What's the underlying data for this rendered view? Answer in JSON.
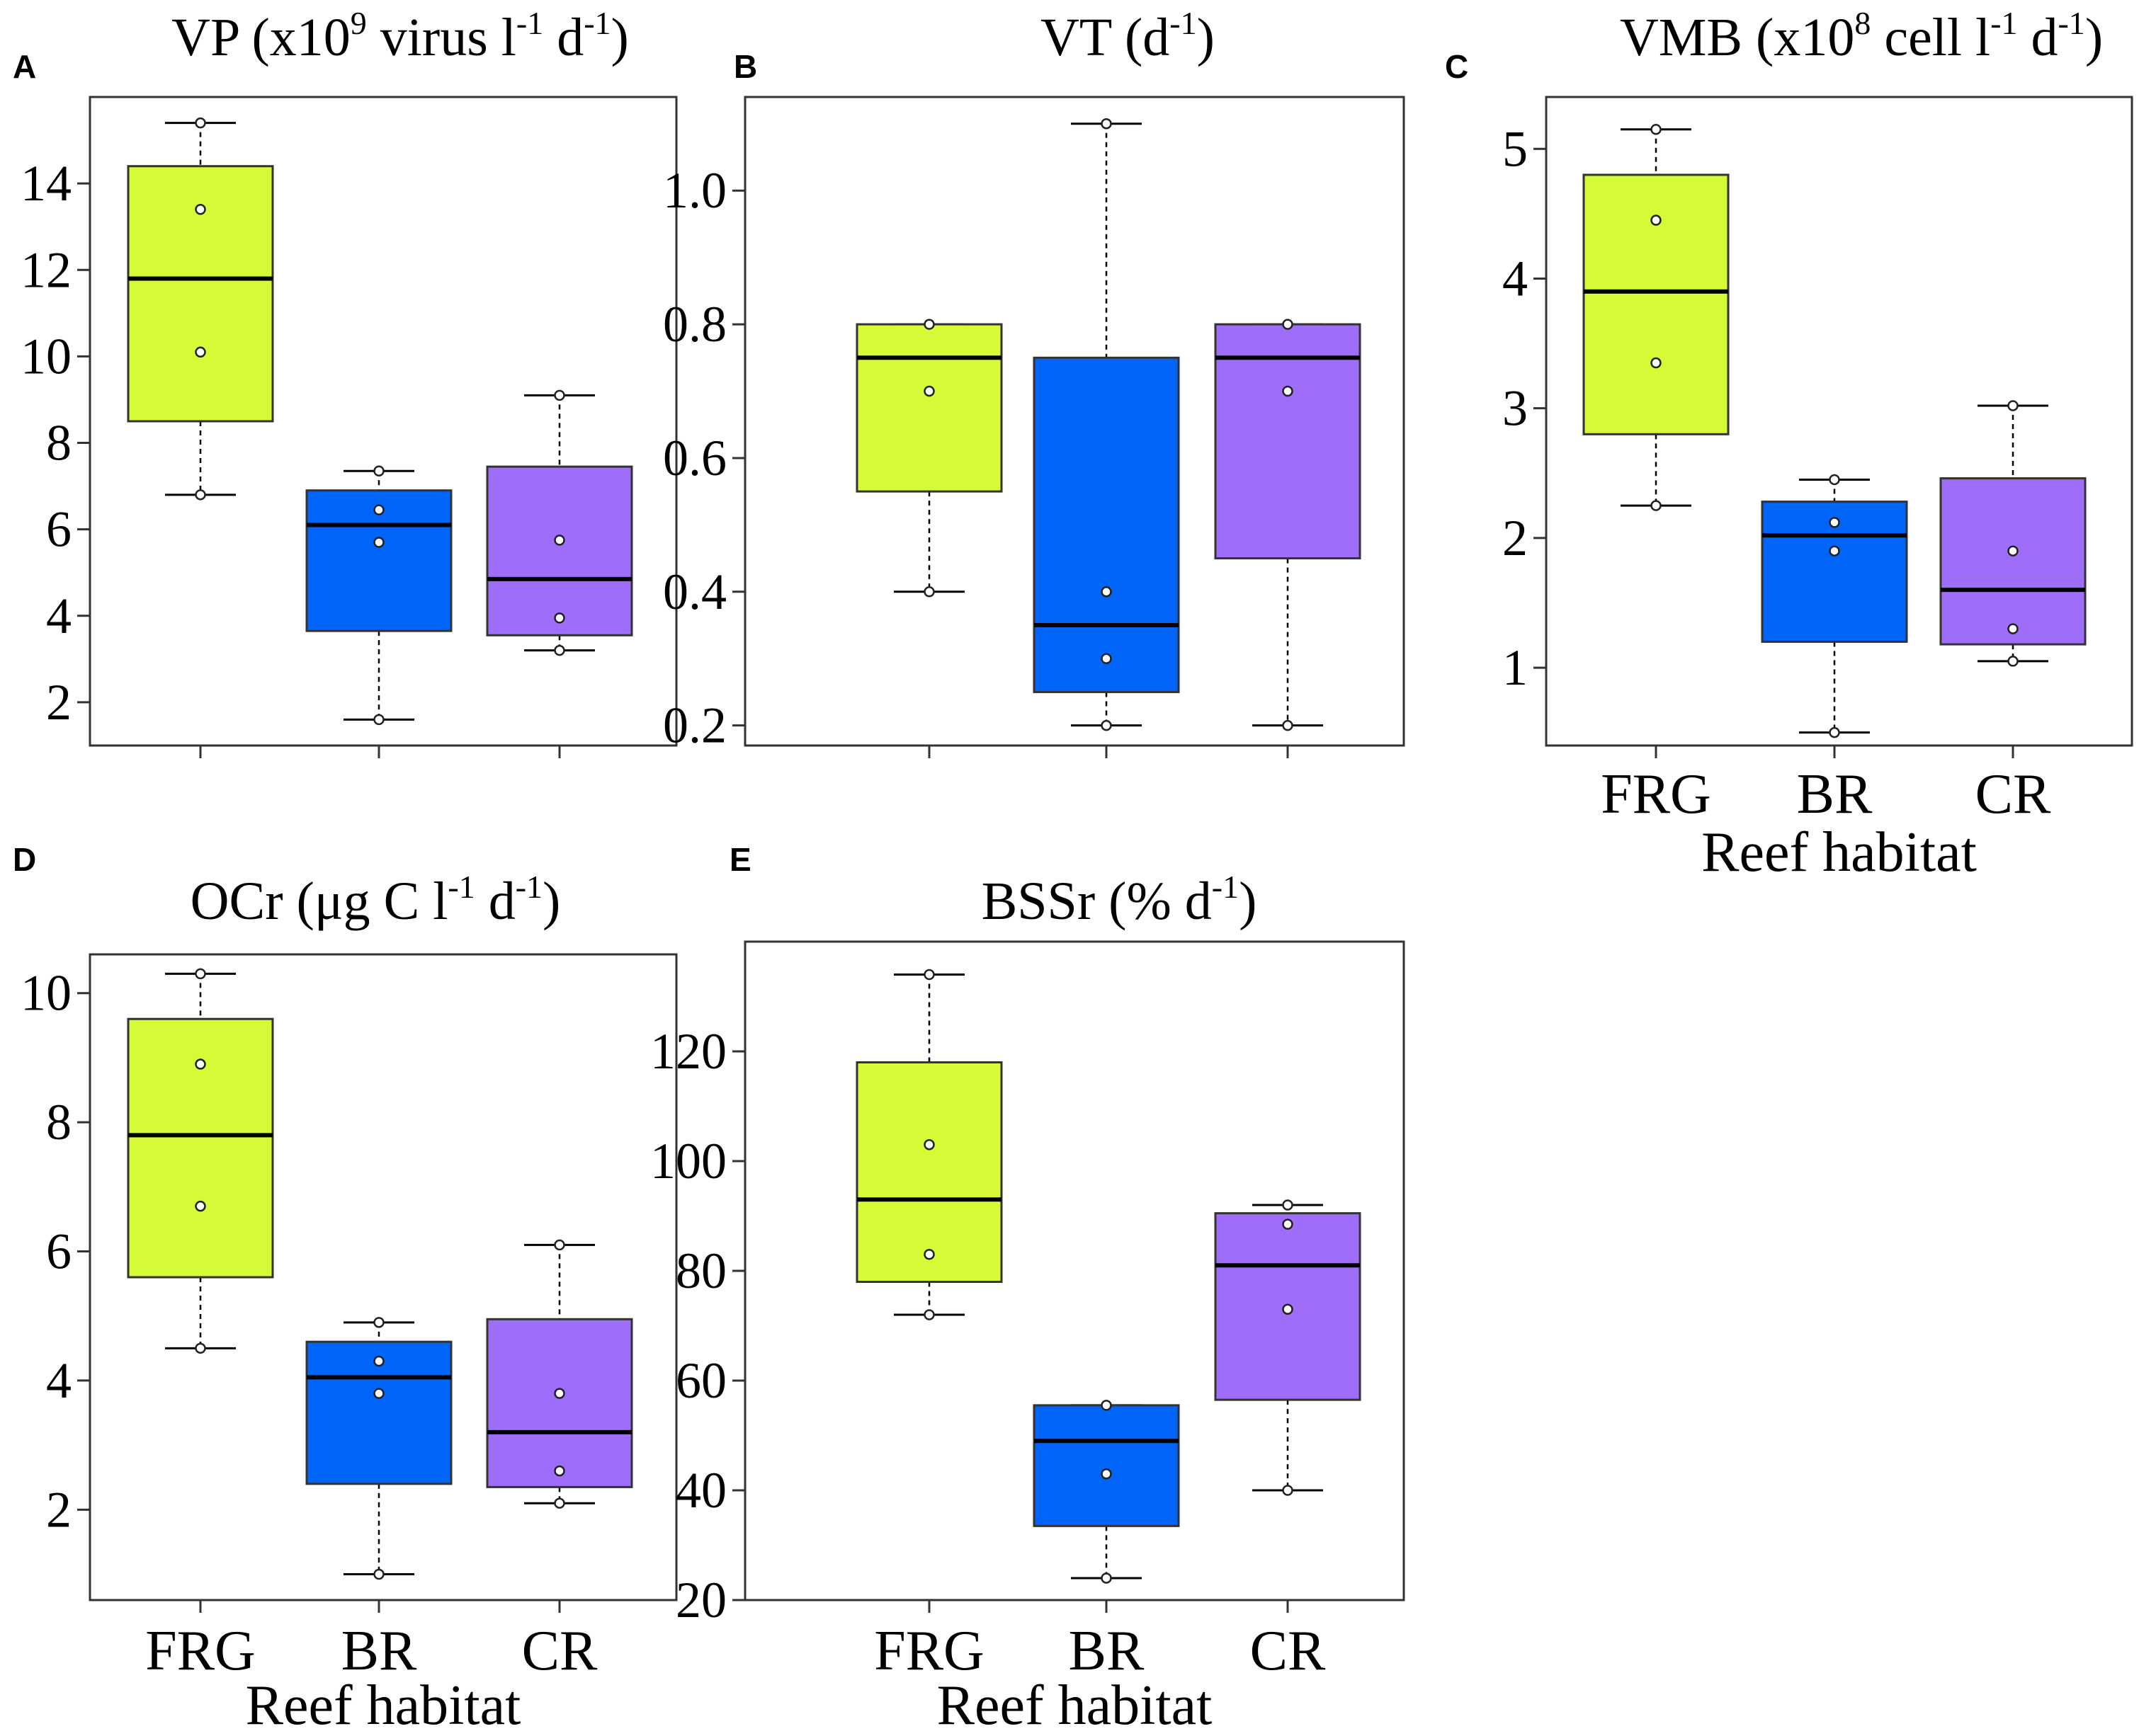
{
  "figure": {
    "category_axis_label": "Reef habitat",
    "colors": {
      "FRG": "#d4fb36",
      "BR": "#0065f8",
      "CR": "#9e6efa"
    }
  },
  "chart_data": [
    {
      "panel": "A",
      "type": "box",
      "title": "VP (x10",
      "title_sup": "9",
      "title_rest": " virus l",
      "title_sup2": "-1",
      "title_rest2": " d",
      "title_sup3": "-1",
      "title_end": ")",
      "categories": [
        "FRG",
        "BR",
        "CR"
      ],
      "show_category_labels": false,
      "ylim": [
        1,
        16
      ],
      "yticks": [
        2,
        4,
        6,
        8,
        10,
        12,
        14
      ],
      "boxes": [
        {
          "category": "FRG",
          "min": 6.8,
          "q1": 8.5,
          "median": 11.8,
          "q3": 14.4,
          "max": 15.4,
          "points": [
            6.8,
            10.1,
            13.4,
            15.4
          ]
        },
        {
          "category": "BR",
          "min": 1.6,
          "q1": 3.65,
          "median": 6.1,
          "q3": 6.9,
          "max": 7.35,
          "points": [
            1.6,
            5.7,
            6.45,
            7.35
          ]
        },
        {
          "category": "CR",
          "min": 3.2,
          "q1": 3.55,
          "median": 4.85,
          "q3": 7.45,
          "max": 9.1,
          "points": [
            3.2,
            3.95,
            5.75,
            9.1
          ]
        }
      ]
    },
    {
      "panel": "B",
      "type": "box",
      "title": "VT (d",
      "title_sup": "-1",
      "title_rest": ")",
      "categories": [
        "FRG",
        "BR",
        "CR"
      ],
      "show_category_labels": false,
      "ylim": [
        0.17,
        1.14
      ],
      "yticks": [
        0.2,
        0.4,
        0.6,
        0.8,
        1.0
      ],
      "ytick_labels": [
        "0.2",
        "0.4",
        "0.6",
        "0.8",
        "1.0"
      ],
      "boxes": [
        {
          "category": "FRG",
          "min": 0.4,
          "q1": 0.55,
          "median": 0.75,
          "q3": 0.8,
          "max": 0.8,
          "points": [
            0.4,
            0.7,
            0.8
          ]
        },
        {
          "category": "BR",
          "min": 0.2,
          "q1": 0.25,
          "median": 0.35,
          "q3": 0.75,
          "max": 1.1,
          "points": [
            0.2,
            0.3,
            0.4,
            1.1
          ]
        },
        {
          "category": "CR",
          "min": 0.2,
          "q1": 0.45,
          "median": 0.75,
          "q3": 0.8,
          "max": 0.8,
          "points": [
            0.2,
            0.7,
            0.8
          ]
        }
      ]
    },
    {
      "panel": "C",
      "type": "box",
      "title": "VMB (x10",
      "title_sup": "8",
      "title_rest": " cell l",
      "title_sup2": "-1",
      "title_rest2": " d",
      "title_sup3": "-1",
      "title_end": ")",
      "categories": [
        "FRG",
        "BR",
        "CR"
      ],
      "show_category_labels": true,
      "ylim": [
        0.4,
        5.4
      ],
      "yticks": [
        1,
        2,
        3,
        4,
        5
      ],
      "boxes": [
        {
          "category": "FRG",
          "min": 2.25,
          "q1": 2.8,
          "median": 3.9,
          "q3": 4.8,
          "max": 5.15,
          "points": [
            2.25,
            3.35,
            4.45,
            5.15
          ]
        },
        {
          "category": "BR",
          "min": 0.5,
          "q1": 1.2,
          "median": 2.02,
          "q3": 2.28,
          "max": 2.45,
          "points": [
            0.5,
            1.9,
            2.12,
            2.45
          ]
        },
        {
          "category": "CR",
          "min": 1.05,
          "q1": 1.18,
          "median": 1.6,
          "q3": 2.46,
          "max": 3.02,
          "points": [
            1.05,
            1.3,
            1.9,
            3.02
          ]
        }
      ]
    },
    {
      "panel": "D",
      "type": "box",
      "title": "OCr (μg C l",
      "title_sup": "-1",
      "title_rest": " d",
      "title_sup2": "-1",
      "title_rest2": ")",
      "categories": [
        "FRG",
        "BR",
        "CR"
      ],
      "show_category_labels": true,
      "ylim": [
        0.6,
        10.6
      ],
      "yticks": [
        2,
        4,
        6,
        8,
        10
      ],
      "boxes": [
        {
          "category": "FRG",
          "min": 4.5,
          "q1": 5.6,
          "median": 7.8,
          "q3": 9.6,
          "max": 10.3,
          "points": [
            4.5,
            6.7,
            8.9,
            10.3
          ]
        },
        {
          "category": "BR",
          "min": 1.0,
          "q1": 2.4,
          "median": 4.05,
          "q3": 4.6,
          "max": 4.9,
          "points": [
            1.0,
            3.8,
            4.3,
            4.9
          ]
        },
        {
          "category": "CR",
          "min": 2.1,
          "q1": 2.35,
          "median": 3.2,
          "q3": 4.95,
          "max": 6.1,
          "points": [
            2.1,
            2.6,
            3.8,
            6.1
          ]
        }
      ]
    },
    {
      "panel": "E",
      "type": "box",
      "title": "BSSr (% d",
      "title_sup": "-1",
      "title_rest": ")",
      "categories": [
        "FRG",
        "BR",
        "CR"
      ],
      "show_category_labels": true,
      "ylim": [
        20,
        140
      ],
      "yticks": [
        20,
        40,
        60,
        80,
        100,
        120
      ],
      "boxes": [
        {
          "category": "FRG",
          "min": 72,
          "q1": 78,
          "median": 93,
          "q3": 118,
          "max": 134,
          "points": [
            72,
            83,
            103,
            134
          ]
        },
        {
          "category": "BR",
          "min": 24,
          "q1": 33.5,
          "median": 49,
          "q3": 55.5,
          "max": 55.5,
          "points": [
            24,
            43,
            55.5
          ]
        },
        {
          "category": "CR",
          "min": 40,
          "q1": 56.5,
          "median": 81,
          "q3": 90.5,
          "max": 92,
          "points": [
            40,
            73,
            88.5,
            92
          ]
        }
      ]
    }
  ]
}
